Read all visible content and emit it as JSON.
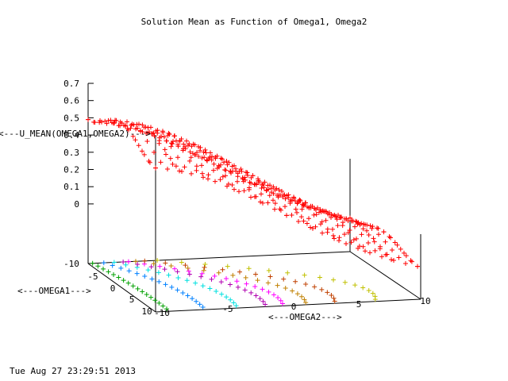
{
  "chart_data": {
    "type": "scatter",
    "title": "Solution Mean as Function of Omega1, Omega2",
    "zlabel": "<---U_MEAN(OMEGA1,OMEGA2)--->",
    "xlabel": "<---OMEGA2--->",
    "ylabel": "<---OMEGA1--->",
    "z_ticks": [
      "0.7",
      "0.6",
      "0.5",
      "0.4",
      "0.3",
      "0.2",
      "0.1",
      "0"
    ],
    "x_ticks": [
      "-10",
      "-5",
      "0",
      "5",
      "10"
    ],
    "y_ticks": [
      "-10",
      "-5",
      "0",
      "5",
      "10"
    ],
    "timestamp": "Tue Aug 27 23:29:51 2013",
    "surface": {
      "description_of_values": "z = U_MEAN sampled on an 11x11 grid of (omega1, omega2)",
      "omega1": [
        -10,
        -8,
        -6,
        -4,
        -2,
        0,
        2,
        4,
        6,
        8,
        10
      ],
      "omega2": [
        -10,
        -8,
        -6,
        -4,
        -2,
        0,
        2,
        4,
        6,
        8,
        10
      ],
      "z_peak": 0.41,
      "z_min": -0.12,
      "color": "#ff0000"
    },
    "contour_colors": [
      "#00a000",
      "#0080ff",
      "#00e0e0",
      "#b000b0",
      "#ff00ff",
      "#c08000",
      "#c04000",
      "#c0c000"
    ],
    "marker": "+"
  }
}
